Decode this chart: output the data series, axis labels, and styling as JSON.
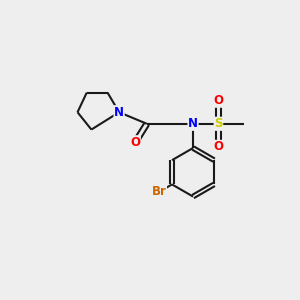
{
  "bg_color": "#eeeeee",
  "bond_color": "#1a1a1a",
  "atom_colors": {
    "N": "#0000ff",
    "O": "#ff0000",
    "S": "#cccc00",
    "Br": "#cc6600"
  },
  "bond_width": 1.5,
  "font_size_atom": 8.5
}
